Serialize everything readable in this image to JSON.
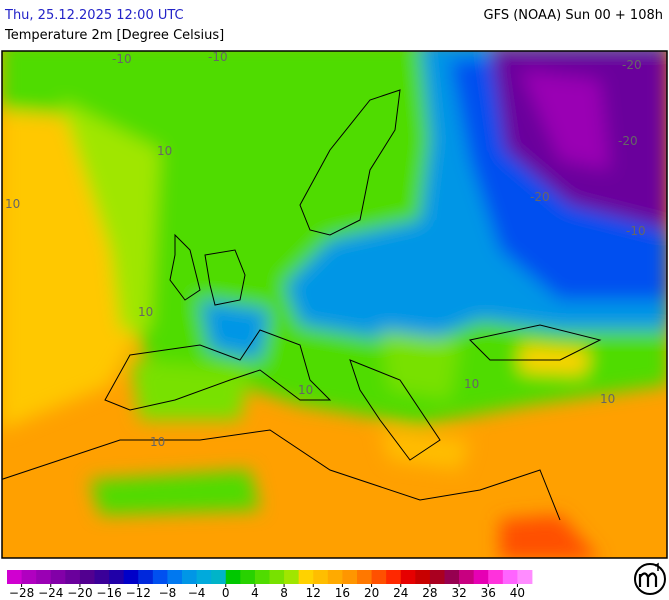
{
  "header": {
    "valid_time": "Thu, 25.12.2025 12:00 UTC",
    "model_run": "GFS (NOAA) Sun 00 + 108h",
    "parameter": "Temperature 2m [Degree Celsius]"
  },
  "map": {
    "contour_labels": [
      -10,
      -10,
      -20,
      -20,
      -20,
      -10,
      10,
      10,
      10,
      10,
      10,
      10,
      10
    ]
  },
  "legend": {
    "colors": [
      "#d000d0",
      "#b000c0",
      "#9a00b4",
      "#8200a8",
      "#6a009c",
      "#520090",
      "#3a0098",
      "#2000a8",
      "#0000c8",
      "#0028dc",
      "#0050f0",
      "#0078f0",
      "#0096e6",
      "#00aadc",
      "#00b4c8",
      "#00c800",
      "#28d200",
      "#50dc00",
      "#78e100",
      "#a0e600",
      "#ffd200",
      "#ffbe00",
      "#ffaa00",
      "#ff9600",
      "#ff7800",
      "#ff5000",
      "#ff2800",
      "#e60000",
      "#c80000",
      "#aa0020",
      "#960050",
      "#c80080",
      "#e600b4",
      "#ff32dc",
      "#ff64ff",
      "#ff8cff"
    ],
    "ticks": [
      {
        "value": -28,
        "label": "−28"
      },
      {
        "value": -24,
        "label": "−24"
      },
      {
        "value": -20,
        "label": "−20"
      },
      {
        "value": -16,
        "label": "−16"
      },
      {
        "value": -12,
        "label": "−12"
      },
      {
        "value": -8,
        "label": "−8"
      },
      {
        "value": -4,
        "label": "−4"
      },
      0,
      4,
      8,
      12,
      16,
      20,
      24,
      28,
      32,
      36,
      40
    ]
  }
}
